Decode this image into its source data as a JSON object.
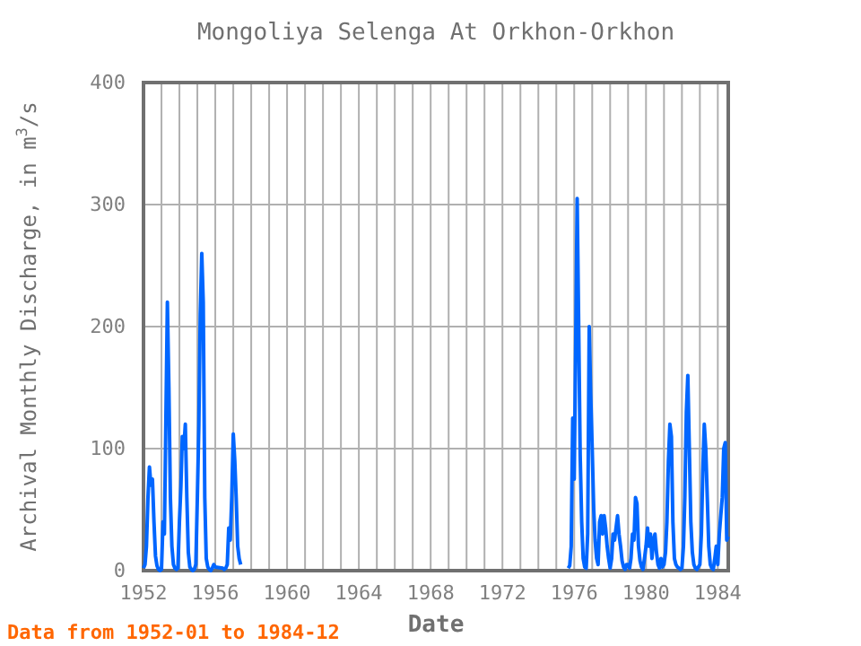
{
  "chart_data": {
    "type": "line",
    "title": "Mongoliya Selenga At Orkhon-Orkhon",
    "xlabel": "Date",
    "ylabel": "Archival Monthly Discharge, in m$^{3}$/s",
    "annotations": [
      "Data from 1952-01 to 1984-12"
    ],
    "x": [
      "1952-01",
      "1952-02",
      "1952-03",
      "1952-04",
      "1952-05",
      "1952-06",
      "1952-07",
      "1952-08",
      "1952-09",
      "1952-10",
      "1952-11",
      "1952-12",
      "1953-01",
      "1953-02",
      "1953-03",
      "1953-04",
      "1953-05",
      "1953-06",
      "1953-07",
      "1953-08",
      "1953-09",
      "1953-10",
      "1953-11",
      "1953-12",
      "1954-01",
      "1954-02",
      "1954-03",
      "1954-04",
      "1954-05",
      "1954-06",
      "1954-07",
      "1954-08",
      "1954-09",
      "1954-10",
      "1954-11",
      "1954-12",
      "1955-01",
      "1955-02",
      "1955-03",
      "1955-04",
      "1955-05",
      "1955-06",
      "1955-07",
      "1955-08",
      "1955-09",
      "1955-10",
      "1955-11",
      "1955-12",
      "1956-01",
      "1956-06",
      "1956-07",
      "1956-08",
      "1956-09",
      "1956-10",
      "1956-11",
      "1956-12",
      "1957-01",
      "1957-02",
      "1957-03",
      "1957-04",
      "1957-05",
      "1957-06",
      "1966-01",
      "1975-09",
      "1975-10",
      "1975-11",
      "1975-12",
      "1976-01",
      "1976-02",
      "1976-03",
      "1976-04",
      "1976-05",
      "1976-06",
      "1976-07",
      "1976-08",
      "1976-09",
      "1976-10",
      "1976-11",
      "1976-12",
      "1977-01",
      "1977-02",
      "1977-03",
      "1977-04",
      "1977-05",
      "1977-06",
      "1977-07",
      "1977-08",
      "1977-09",
      "1977-10",
      "1977-11",
      "1977-12",
      "1978-01",
      "1978-02",
      "1978-03",
      "1978-04",
      "1978-05",
      "1978-06",
      "1978-07",
      "1978-08",
      "1978-09",
      "1978-10",
      "1978-11",
      "1978-12",
      "1979-01",
      "1979-02",
      "1979-03",
      "1979-04",
      "1979-05",
      "1979-06",
      "1979-07",
      "1979-08",
      "1979-09",
      "1979-10",
      "1979-11",
      "1979-12",
      "1980-01",
      "1980-02",
      "1980-03",
      "1980-04",
      "1980-05",
      "1980-06",
      "1980-07",
      "1980-08",
      "1980-09",
      "1980-10",
      "1980-11",
      "1980-12",
      "1981-01",
      "1981-02",
      "1981-03",
      "1981-04",
      "1981-05",
      "1981-06",
      "1981-07",
      "1981-08",
      "1981-09",
      "1981-10",
      "1981-11",
      "1981-12",
      "1982-01",
      "1982-02",
      "1982-03",
      "1982-04",
      "1982-05",
      "1982-06",
      "1982-07",
      "1982-08",
      "1982-09",
      "1982-10",
      "1982-11",
      "1982-12",
      "1983-01",
      "1983-02",
      "1983-03",
      "1983-04",
      "1983-05",
      "1983-06",
      "1983-07",
      "1983-08",
      "1983-09",
      "1983-10",
      "1983-11",
      "1983-12",
      "1984-01",
      "1984-02",
      "1984-03",
      "1984-04",
      "1984-05",
      "1984-06",
      "1984-07",
      "1984-08"
    ],
    "series": [
      {
        "color": "#0066ff",
        "values": [
          2,
          5,
          20,
          60,
          85,
          70,
          75,
          40,
          12,
          4,
          1,
          0,
          1,
          40,
          30,
          125,
          220,
          150,
          60,
          20,
          5,
          2,
          1,
          2,
          40,
          70,
          110,
          100,
          120,
          60,
          15,
          3,
          1,
          0,
          1,
          5,
          60,
          120,
          210,
          260,
          220,
          60,
          10,
          3,
          1,
          0,
          2,
          5,
          3,
          2,
          1,
          2,
          5,
          35,
          25,
          60,
          112,
          90,
          60,
          20,
          10,
          5,
          null,
          2,
          4,
          20,
          125,
          75,
          190,
          305,
          200,
          95,
          40,
          10,
          3,
          2,
          30,
          200,
          145,
          100,
          50,
          25,
          10,
          5,
          40,
          45,
          30,
          45,
          35,
          20,
          10,
          2,
          10,
          30,
          25,
          35,
          45,
          30,
          20,
          8,
          3,
          1,
          5,
          5,
          2,
          10,
          30,
          25,
          60,
          55,
          20,
          8,
          3,
          1,
          10,
          20,
          35,
          20,
          30,
          10,
          25,
          30,
          15,
          5,
          2,
          10,
          3,
          5,
          15,
          40,
          90,
          120,
          110,
          40,
          10,
          5,
          3,
          2,
          1,
          2,
          20,
          60,
          130,
          160,
          100,
          40,
          15,
          5,
          2,
          1,
          3,
          5,
          30,
          80,
          120,
          100,
          60,
          20,
          5,
          2,
          1,
          10,
          20,
          5,
          30,
          45,
          60,
          100,
          105,
          25,
          28
        ]
      }
    ],
    "xlim": [
      "1952-01",
      "1984-08"
    ],
    "xticks": [
      {
        "value": "1952-01",
        "label": "1952"
      },
      {
        "value": "1956-01",
        "label": "1956"
      },
      {
        "value": "1960-01",
        "label": "1960"
      },
      {
        "value": "1964-01",
        "label": "1964"
      },
      {
        "value": "1968-01",
        "label": "1968"
      },
      {
        "value": "1972-01",
        "label": "1972"
      },
      {
        "value": "1976-01",
        "label": "1976"
      },
      {
        "value": "1980-01",
        "label": "1980"
      },
      {
        "value": "1984-01",
        "label": "1984"
      }
    ],
    "ylim": [
      0,
      400
    ],
    "yticks": [
      0,
      100,
      200,
      300,
      400
    ],
    "grid": true,
    "marker": "none",
    "line_style": "solid"
  }
}
